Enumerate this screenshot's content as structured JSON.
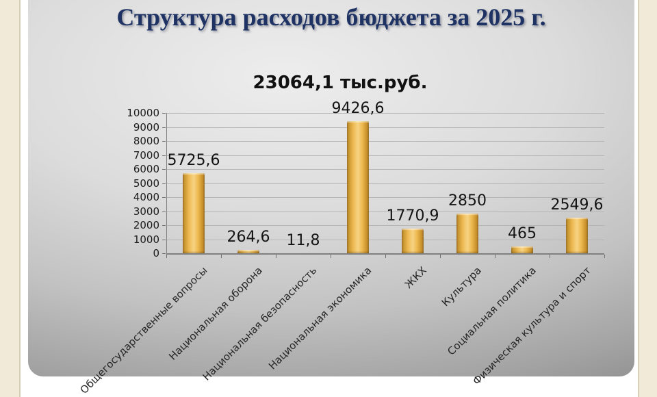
{
  "slide": {
    "title": "Структура расходов бюджета за 2025 г."
  },
  "chart_data": {
    "type": "bar",
    "title": "23064,1 тыс.руб.",
    "categories": [
      "Общегосударственные вопросы",
      "Национальная оборона",
      "Национальная безопасность",
      "Национальная экономика",
      "ЖКХ",
      "Культура",
      "Социальная политика",
      "Физическая культура и спорт"
    ],
    "values": [
      5725.6,
      264.6,
      11.8,
      9426.6,
      1770.9,
      2850,
      465,
      2549.6
    ],
    "value_labels": [
      "5725,6",
      "264,6",
      "11,8",
      "9426,6",
      "1770,9",
      "2850",
      "465",
      "2549,6"
    ],
    "xlabel": "",
    "ylabel": "",
    "ylim": [
      0,
      10000
    ],
    "ytick_labels": [
      "0",
      "1000",
      "2000",
      "3000",
      "4000",
      "5000",
      "6000",
      "7000",
      "8000",
      "9000",
      "10000"
    ],
    "grid": true,
    "legend": false,
    "bar_color": "#e9b24a",
    "title_color": "#1e3263"
  }
}
